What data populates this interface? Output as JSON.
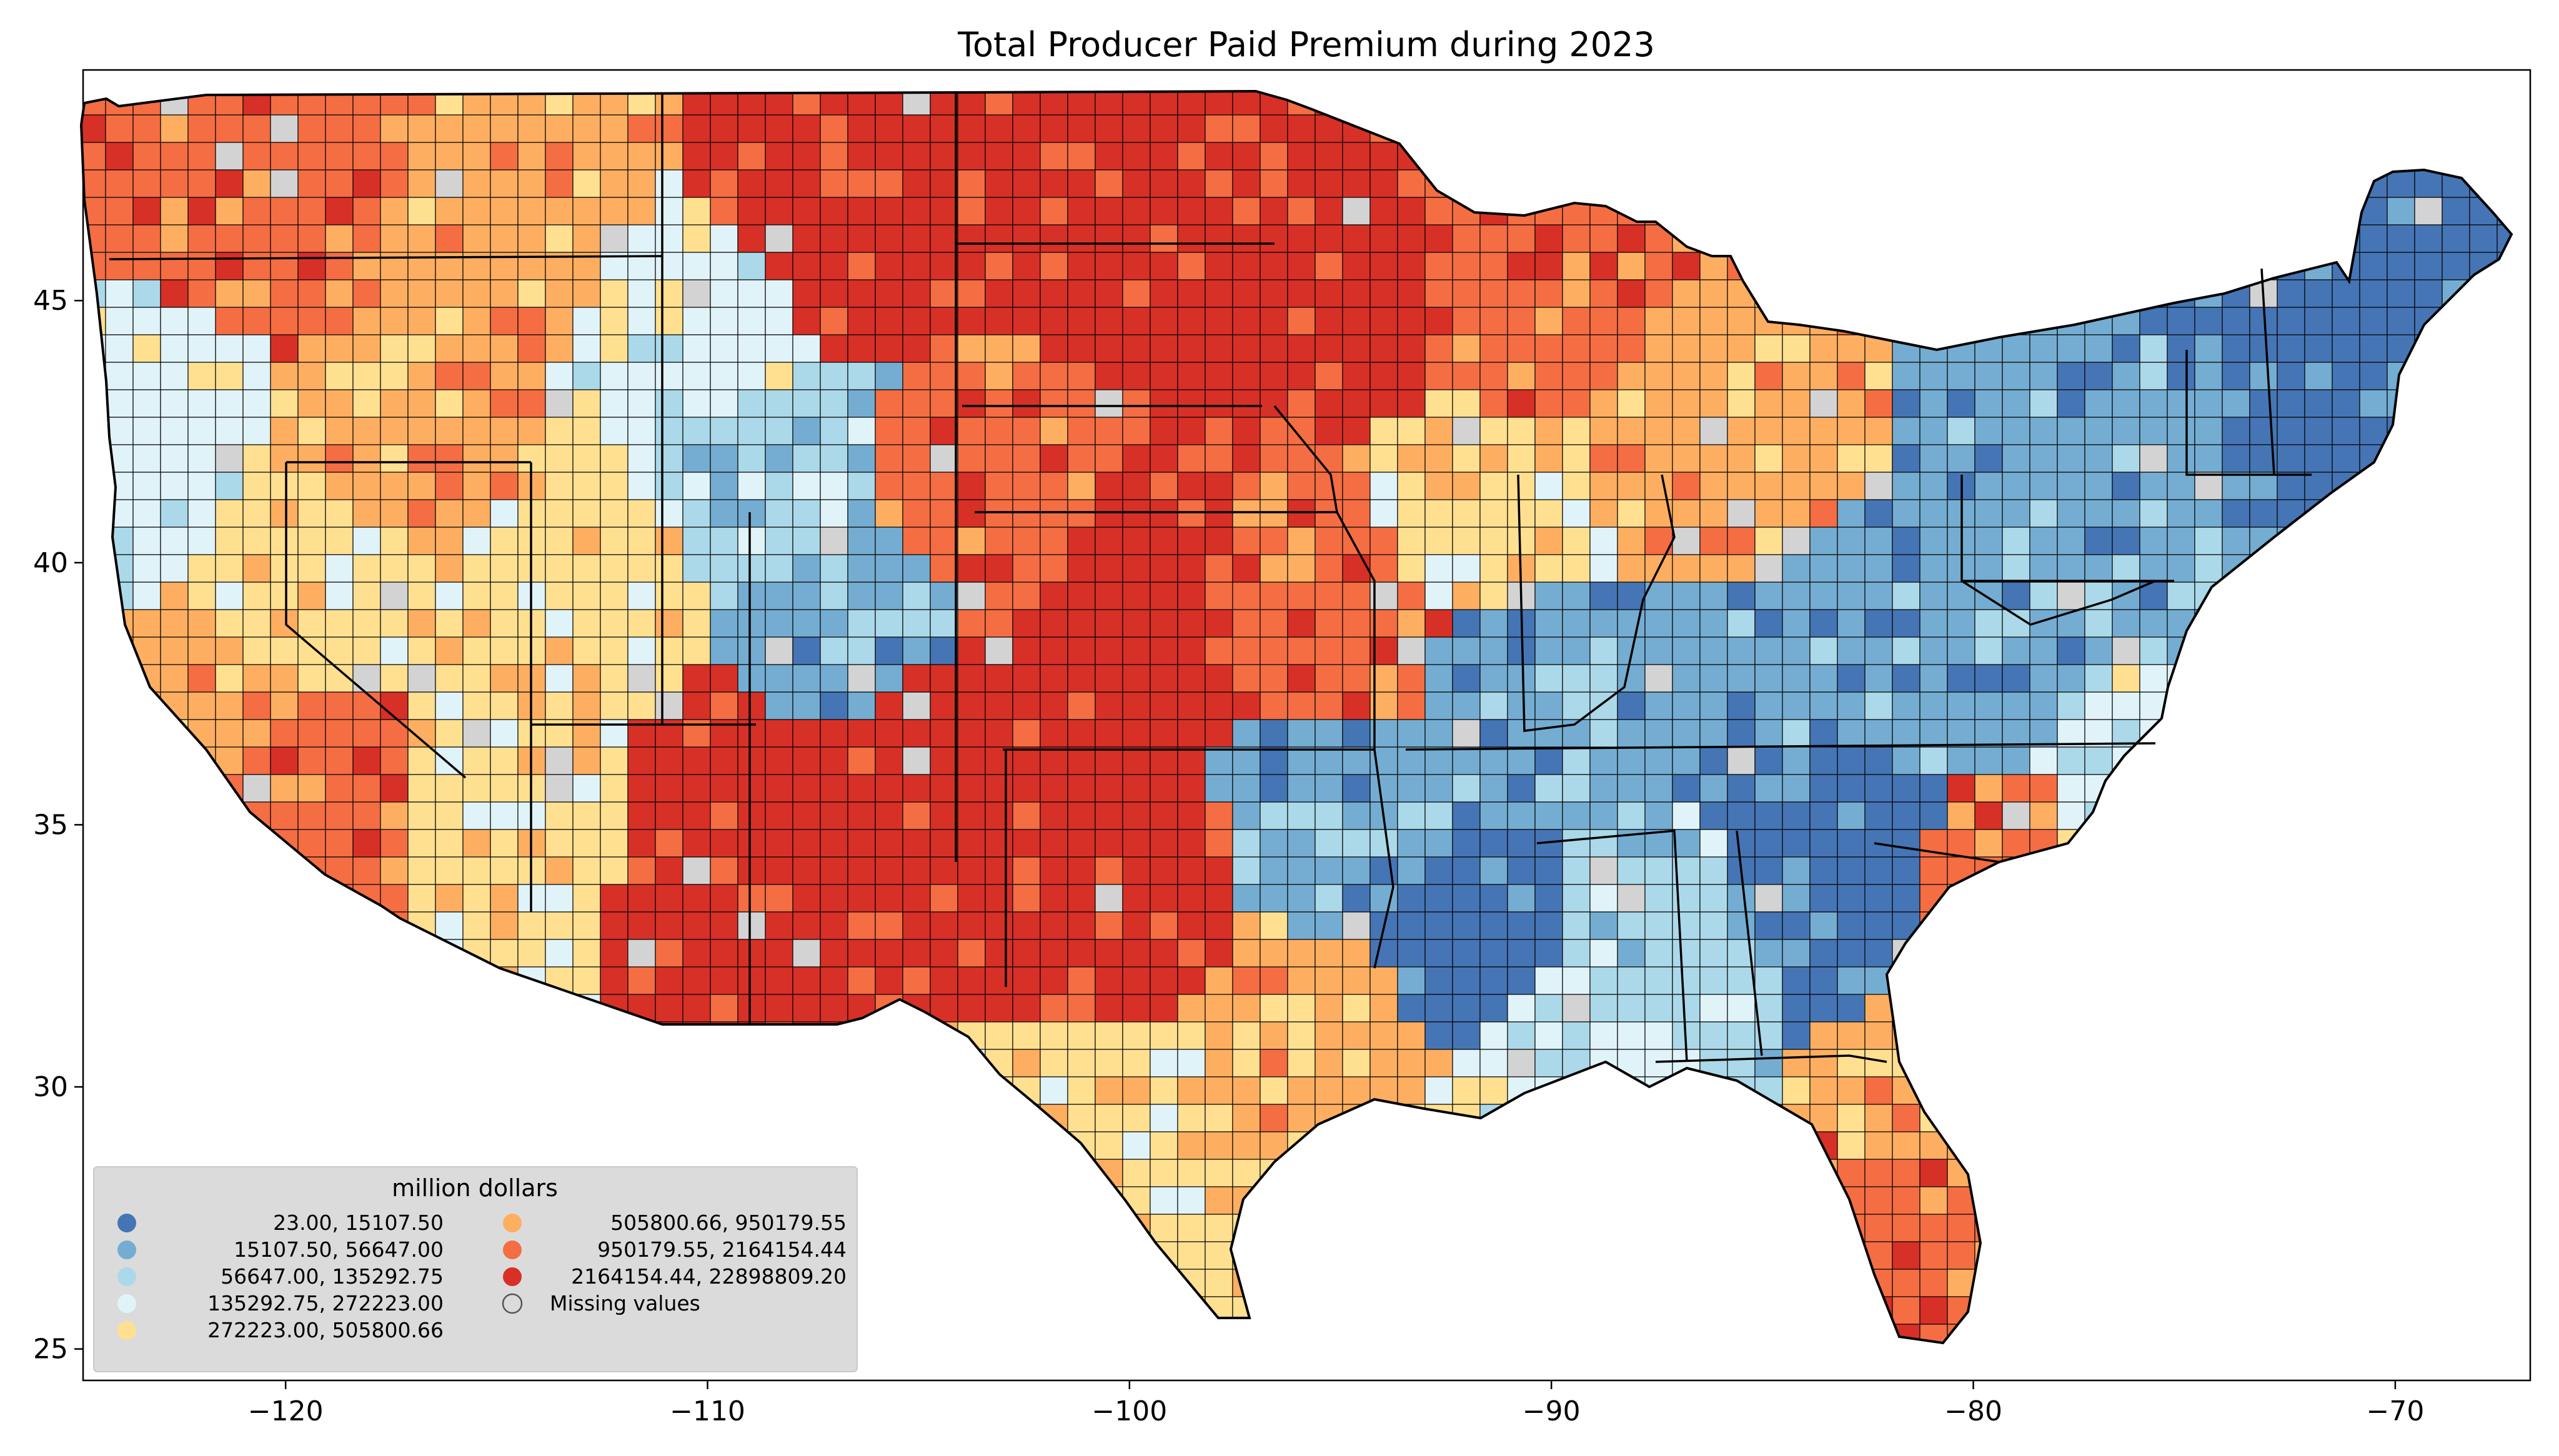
{
  "title": "Total Producer Paid Premium during 2023",
  "map": {
    "type": "choropleth",
    "region": "Contiguous United States counties",
    "x_ticks": [
      "−120",
      "−110",
      "−100",
      "−90",
      "−80",
      "−70"
    ],
    "x_tick_values": [
      -120,
      -110,
      -100,
      -90,
      -80,
      -70
    ],
    "y_ticks": [
      "45",
      "40",
      "35",
      "30",
      "25"
    ],
    "y_tick_values": [
      45,
      40,
      35,
      30,
      25
    ],
    "xlim": [
      -124.8,
      -66.8
    ],
    "ylim": [
      24.4,
      49.4
    ]
  },
  "legend": {
    "title": "million dollars",
    "items": [
      {
        "label": "23.00,    15107.50",
        "color": "#4575b4"
      },
      {
        "label": "15107.50,    56647.00",
        "color": "#74add1"
      },
      {
        "label": "56647.00,   135292.75",
        "color": "#abd9e9"
      },
      {
        "label": "135292.75,   272223.00",
        "color": "#e0f3f8"
      },
      {
        "label": "272223.00,   505800.66",
        "color": "#fee090"
      },
      {
        "label": "505800.66,   950179.55",
        "color": "#fdae61"
      },
      {
        "label": "950179.55,  2164154.44",
        "color": "#f46d43"
      },
      {
        "label": "2164154.44, 22898809.20",
        "color": "#d73027"
      },
      {
        "label": "Missing values",
        "color": "#d3d3d3"
      }
    ]
  },
  "colors": {
    "missing": "#d3d3d3",
    "border": "#000000"
  }
}
